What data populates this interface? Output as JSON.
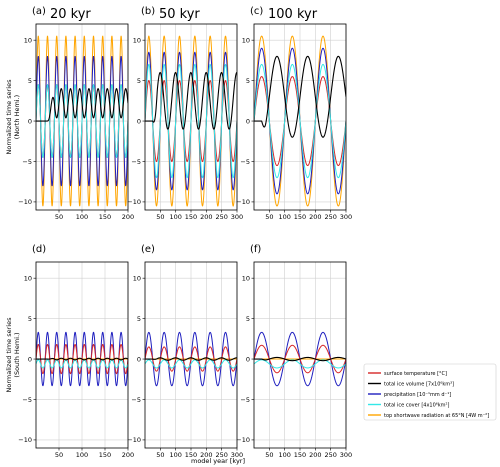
{
  "chart_data": {
    "type": "line",
    "xlabel": "model year [kyr]",
    "ylabels": [
      "Normalized time series\n(North Hemi.)",
      "Normalized time series\n(South Hemi.)"
    ],
    "ylim": [
      -11,
      12
    ],
    "yticks": [
      -10,
      -5,
      0,
      5,
      10
    ],
    "grid": true,
    "legend_position": "right of bottom row",
    "panels": [
      {
        "label": "(a)",
        "title": "20 kyr",
        "row": 0,
        "period": 20,
        "xlim": [
          0,
          200
        ],
        "xticks": [
          50,
          100,
          150,
          200
        ],
        "series": {
          "surface_temperature": {
            "amplitude": 4.5,
            "phase": 0
          },
          "total_ice_volume": {
            "offset": 2.2,
            "amplitude": 1.8,
            "lag": 5
          },
          "precipitation": {
            "amplitude": 8,
            "phase": 0
          },
          "total_ice_cover": {
            "amplitude": 4.5,
            "lag": 10
          },
          "top_shortwave": {
            "amplitude": 10.5,
            "phase": 0
          }
        }
      },
      {
        "label": "(b)",
        "title": "50 kyr",
        "row": 0,
        "period": 50,
        "xlim": [
          0,
          300
        ],
        "xticks": [
          50,
          100,
          150,
          200,
          250,
          300
        ],
        "series": {
          "surface_temperature": {
            "amplitude": 5,
            "phase": 0
          },
          "total_ice_volume": {
            "offset": 2.5,
            "amplitude": 3.5,
            "lag": 12
          },
          "precipitation": {
            "amplitude": 8.5,
            "phase": 0
          },
          "total_ice_cover": {
            "amplitude": 7,
            "lag": 25
          },
          "top_shortwave": {
            "amplitude": 10.5,
            "phase": 0
          }
        }
      },
      {
        "label": "(c)",
        "title": "100 kyr",
        "row": 0,
        "period": 100,
        "xlim": [
          0,
          300
        ],
        "xticks": [
          50,
          100,
          150,
          200,
          250,
          300
        ],
        "series": {
          "surface_temperature": {
            "amplitude": 5.5,
            "phase": 0
          },
          "total_ice_volume": {
            "offset": 3,
            "amplitude": 5,
            "lag": 25
          },
          "precipitation": {
            "amplitude": 9,
            "phase": 0
          },
          "total_ice_cover": {
            "amplitude": 7,
            "lag": 50
          },
          "top_shortwave": {
            "amplitude": 10.5,
            "phase": 0
          }
        }
      },
      {
        "label": "(d)",
        "title": "",
        "row": 1,
        "period": 20,
        "xlim": [
          0,
          200
        ],
        "xticks": [
          50,
          100,
          150,
          200
        ],
        "series": {
          "surface_temperature": {
            "amplitude": 1.8,
            "phase": 0
          },
          "total_ice_volume": {
            "offset": 0,
            "amplitude": 0.1,
            "lag": 5
          },
          "precipitation": {
            "amplitude": 3.3,
            "phase": 0
          },
          "total_ice_cover": {
            "offset": -0.6,
            "amplitude": 0.5,
            "lag": 10
          },
          "top_shortwave": {
            "amplitude": 0,
            "phase": 0
          }
        }
      },
      {
        "label": "(e)",
        "title": "",
        "row": 1,
        "period": 50,
        "xlim": [
          0,
          300
        ],
        "xticks": [
          50,
          100,
          150,
          200,
          250,
          300
        ],
        "series": {
          "surface_temperature": {
            "amplitude": 1.5,
            "phase": 0
          },
          "total_ice_volume": {
            "offset": 0,
            "amplitude": 0.15,
            "lag": 12
          },
          "precipitation": {
            "amplitude": 3.3,
            "phase": 0
          },
          "total_ice_cover": {
            "offset": -0.6,
            "amplitude": 0.5,
            "lag": 25
          },
          "top_shortwave": {
            "amplitude": 0,
            "phase": 0
          }
        }
      },
      {
        "label": "(f)",
        "title": "",
        "row": 1,
        "period": 100,
        "xlim": [
          0,
          300
        ],
        "xticks": [
          50,
          100,
          150,
          200,
          250,
          300
        ],
        "series": {
          "surface_temperature": {
            "amplitude": 1.7,
            "phase": 0
          },
          "total_ice_volume": {
            "offset": 0,
            "amplitude": 0.2,
            "lag": 25
          },
          "precipitation": {
            "amplitude": 3.3,
            "phase": 0
          },
          "total_ice_cover": {
            "offset": -0.6,
            "amplitude": 0.5,
            "lag": 50
          },
          "top_shortwave": {
            "amplitude": 0,
            "phase": 0
          }
        }
      }
    ],
    "legend": [
      {
        "key": "surface_temperature",
        "label": "surface temperature [°C]",
        "color": "#d62728"
      },
      {
        "key": "total_ice_volume",
        "label": "total ice volume [7x10⁶km³]",
        "color": "#000000"
      },
      {
        "key": "precipitation",
        "label": "precipitation [10⁻¹mm d⁻¹]",
        "color": "#1f1fbf"
      },
      {
        "key": "total_ice_cover",
        "label": "total ice cover [4x10⁶km²]",
        "color": "#33e8e8"
      },
      {
        "key": "top_shortwave",
        "label": "top shortwave radiation at 65°N [4W m⁻²]",
        "color": "#ffa500"
      }
    ]
  }
}
